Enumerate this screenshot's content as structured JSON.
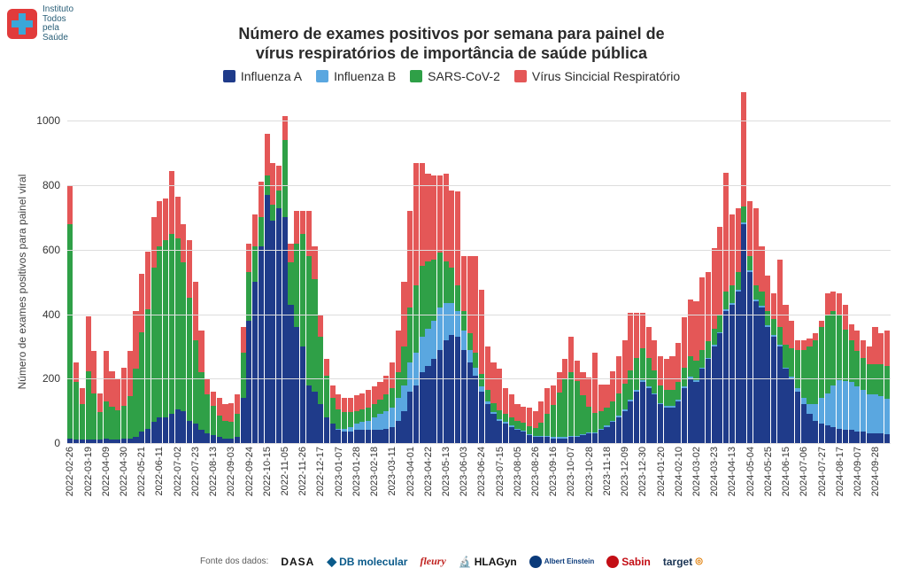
{
  "logo": {
    "lines": [
      "Instituto",
      "Todos",
      "pela",
      "Saúde"
    ]
  },
  "title": {
    "line1": "Número de exames positivos por semana para painel de",
    "line2": "vírus respiratórios de importância de saúde pública",
    "fontsize": 18,
    "fontweight": 700
  },
  "legend": {
    "items": [
      {
        "label": "Influenza A",
        "color": "#1f3b8a"
      },
      {
        "label": "Influenza B",
        "color": "#5aa7e0"
      },
      {
        "label": "SARS-CoV-2",
        "color": "#2fa047"
      },
      {
        "label": "Vírus Sincicial Respiratório",
        "color": "#e45757"
      }
    ],
    "fontsize": 14
  },
  "yaxis": {
    "label": "Número de exames positivos para painel viral",
    "min": 0,
    "max": 1100,
    "ticks": [
      0,
      200,
      400,
      600,
      800,
      1000
    ],
    "grid_color": "#dddddd",
    "label_fontsize": 12
  },
  "xaxis": {
    "tick_every": 3,
    "label_fontsize": 11
  },
  "chart": {
    "type": "stacked-bar",
    "background_color": "#ffffff",
    "stack_order": [
      "influenza_a",
      "influenza_b",
      "sars_cov_2",
      "vsr"
    ],
    "colors": {
      "influenza_a": "#1f3b8a",
      "influenza_b": "#5aa7e0",
      "sars_cov_2": "#2fa047",
      "vsr": "#e45757"
    },
    "weeks": [
      "2022-02-26",
      "2022-03-05",
      "2022-03-12",
      "2022-03-19",
      "2022-03-26",
      "2022-04-02",
      "2022-04-09",
      "2022-04-16",
      "2022-04-23",
      "2022-04-30",
      "2022-05-07",
      "2022-05-14",
      "2022-05-21",
      "2022-05-28",
      "2022-06-04",
      "2022-06-11",
      "2022-06-18",
      "2022-06-25",
      "2022-07-02",
      "2022-07-09",
      "2022-07-16",
      "2022-07-23",
      "2022-07-30",
      "2022-08-06",
      "2022-08-13",
      "2022-08-20",
      "2022-08-27",
      "2022-09-03",
      "2022-09-10",
      "2022-09-17",
      "2022-09-24",
      "2022-10-01",
      "2022-10-08",
      "2022-10-15",
      "2022-10-22",
      "2022-10-29",
      "2022-11-05",
      "2022-11-12",
      "2022-11-19",
      "2022-11-26",
      "2022-12-03",
      "2022-12-10",
      "2022-12-17",
      "2022-12-24",
      "2022-12-31",
      "2023-01-07",
      "2023-01-14",
      "2023-01-21",
      "2023-01-28",
      "2023-02-04",
      "2023-02-11",
      "2023-02-18",
      "2023-02-25",
      "2023-03-04",
      "2023-03-11",
      "2023-03-18",
      "2023-03-25",
      "2023-04-01",
      "2023-04-08",
      "2023-04-15",
      "2023-04-22",
      "2023-04-29",
      "2023-05-06",
      "2023-05-13",
      "2023-05-20",
      "2023-05-27",
      "2023-06-03",
      "2023-06-10",
      "2023-06-17",
      "2023-06-24",
      "2023-07-01",
      "2023-07-08",
      "2023-07-15",
      "2023-07-22",
      "2023-07-29",
      "2023-08-05",
      "2023-08-12",
      "2023-08-19",
      "2023-08-26",
      "2023-09-02",
      "2023-09-09",
      "2023-09-16",
      "2023-09-23",
      "2023-09-30",
      "2023-10-07",
      "2023-10-14",
      "2023-10-21",
      "2023-10-28",
      "2023-11-04",
      "2023-11-11",
      "2023-11-18",
      "2023-11-25",
      "2023-12-02",
      "2023-12-09",
      "2023-12-16",
      "2023-12-23",
      "2023-12-30",
      "2024-01-06",
      "2024-01-13",
      "2024-01-20",
      "2024-01-27",
      "2024-02-03",
      "2024-02-10",
      "2024-02-17",
      "2024-02-24",
      "2024-03-02",
      "2024-03-09",
      "2024-03-16",
      "2024-03-23",
      "2024-03-30",
      "2024-04-06",
      "2024-04-13",
      "2024-04-20",
      "2024-04-27",
      "2024-05-04",
      "2024-05-11",
      "2024-05-18",
      "2024-05-25",
      "2024-06-01",
      "2024-06-08",
      "2024-06-15",
      "2024-06-22",
      "2024-06-29",
      "2024-07-06",
      "2024-07-13",
      "2024-07-20",
      "2024-07-27",
      "2024-08-03",
      "2024-08-10",
      "2024-08-17",
      "2024-08-24",
      "2024-08-31",
      "2024-09-07",
      "2024-09-14",
      "2024-09-21",
      "2024-09-28",
      "2024-10-05",
      "2024-10-12"
    ],
    "series": {
      "influenza_a": [
        15,
        10,
        10,
        12,
        10,
        10,
        15,
        12,
        12,
        15,
        15,
        20,
        35,
        45,
        65,
        80,
        80,
        90,
        105,
        100,
        70,
        60,
        40,
        30,
        25,
        20,
        15,
        15,
        20,
        140,
        380,
        500,
        610,
        770,
        690,
        730,
        700,
        430,
        360,
        300,
        180,
        160,
        120,
        80,
        60,
        40,
        35,
        35,
        40,
        40,
        40,
        40,
        40,
        45,
        50,
        70,
        100,
        160,
        180,
        220,
        240,
        260,
        290,
        320,
        335,
        330,
        290,
        250,
        210,
        160,
        120,
        90,
        70,
        60,
        50,
        40,
        35,
        25,
        20,
        20,
        18,
        15,
        15,
        15,
        18,
        20,
        25,
        30,
        30,
        40,
        50,
        65,
        80,
        100,
        130,
        160,
        190,
        170,
        150,
        120,
        110,
        110,
        130,
        170,
        200,
        190,
        230,
        260,
        300,
        340,
        410,
        430,
        470,
        680,
        530,
        440,
        420,
        360,
        330,
        300,
        230,
        200,
        160,
        120,
        90,
        70,
        60,
        55,
        50,
        45,
        42,
        40,
        35,
        35,
        30,
        30,
        30,
        28
      ],
      "influenza_b": [
        0,
        0,
        0,
        0,
        0,
        0,
        0,
        0,
        0,
        0,
        0,
        0,
        0,
        0,
        0,
        0,
        0,
        0,
        0,
        0,
        0,
        0,
        0,
        0,
        0,
        0,
        0,
        0,
        0,
        0,
        0,
        0,
        0,
        0,
        0,
        0,
        0,
        0,
        0,
        0,
        0,
        0,
        0,
        0,
        0,
        5,
        10,
        15,
        20,
        25,
        30,
        40,
        50,
        55,
        60,
        70,
        80,
        90,
        100,
        110,
        115,
        120,
        130,
        115,
        100,
        80,
        60,
        40,
        25,
        15,
        10,
        5,
        5,
        5,
        5,
        3,
        3,
        3,
        3,
        3,
        3,
        3,
        3,
        3,
        3,
        3,
        3,
        3,
        3,
        5,
        5,
        5,
        5,
        5,
        5,
        5,
        5,
        5,
        5,
        5,
        5,
        5,
        5,
        5,
        5,
        5,
        5,
        5,
        5,
        5,
        5,
        5,
        5,
        5,
        5,
        5,
        5,
        5,
        5,
        5,
        5,
        5,
        10,
        20,
        30,
        50,
        80,
        100,
        130,
        150,
        150,
        150,
        140,
        130,
        120,
        120,
        115,
        110
      ],
      "sars_cov_2": [
        665,
        180,
        110,
        210,
        145,
        85,
        115,
        100,
        90,
        100,
        130,
        210,
        310,
        370,
        480,
        530,
        550,
        560,
        530,
        460,
        380,
        260,
        180,
        120,
        90,
        65,
        55,
        50,
        70,
        140,
        150,
        110,
        90,
        60,
        50,
        55,
        240,
        130,
        260,
        350,
        400,
        350,
        210,
        130,
        80,
        60,
        50,
        45,
        40,
        40,
        40,
        40,
        45,
        50,
        60,
        80,
        120,
        170,
        210,
        220,
        210,
        190,
        170,
        130,
        110,
        80,
        60,
        50,
        45,
        40,
        35,
        30,
        28,
        25,
        25,
        25,
        25,
        25,
        25,
        40,
        70,
        100,
        140,
        180,
        200,
        170,
        120,
        80,
        60,
        55,
        55,
        60,
        70,
        80,
        90,
        100,
        100,
        90,
        70,
        55,
        50,
        50,
        55,
        60,
        65,
        60,
        55,
        50,
        50,
        50,
        55,
        55,
        55,
        50,
        45,
        45,
        45,
        45,
        50,
        55,
        70,
        90,
        120,
        150,
        180,
        200,
        220,
        240,
        230,
        200,
        160,
        130,
        110,
        100,
        95,
        95,
        100,
        100
      ],
      "vsr": [
        120,
        60,
        50,
        170,
        130,
        60,
        155,
        110,
        100,
        120,
        140,
        180,
        180,
        180,
        155,
        140,
        130,
        195,
        130,
        120,
        180,
        180,
        130,
        50,
        45,
        55,
        50,
        60,
        60,
        80,
        90,
        100,
        110,
        130,
        130,
        75,
        75,
        60,
        100,
        70,
        140,
        100,
        70,
        50,
        40,
        45,
        45,
        45,
        50,
        50,
        55,
        55,
        55,
        60,
        80,
        130,
        200,
        300,
        380,
        320,
        270,
        260,
        240,
        270,
        240,
        290,
        170,
        240,
        300,
        260,
        135,
        125,
        127,
        80,
        70,
        52,
        50,
        57,
        52,
        67,
        79,
        62,
        62,
        62,
        109,
        62,
        72,
        90,
        187,
        82,
        72,
        92,
        115,
        135,
        180,
        140,
        110,
        95,
        95,
        90,
        95,
        105,
        120,
        155,
        175,
        185,
        225,
        215,
        250,
        275,
        370,
        220,
        200,
        355,
        170,
        240,
        140,
        110,
        80,
        210,
        125,
        85,
        30,
        30,
        25,
        20,
        20,
        70,
        60,
        70,
        78,
        50,
        65,
        55,
        55,
        115,
        95,
        112
      ]
    }
  },
  "footer": {
    "label": "Fonte dos dados:",
    "sources": [
      "DASA",
      "DB molecular",
      "fleury",
      "HLAGyn",
      "Albert Einstein",
      "Sabin",
      "target"
    ]
  }
}
